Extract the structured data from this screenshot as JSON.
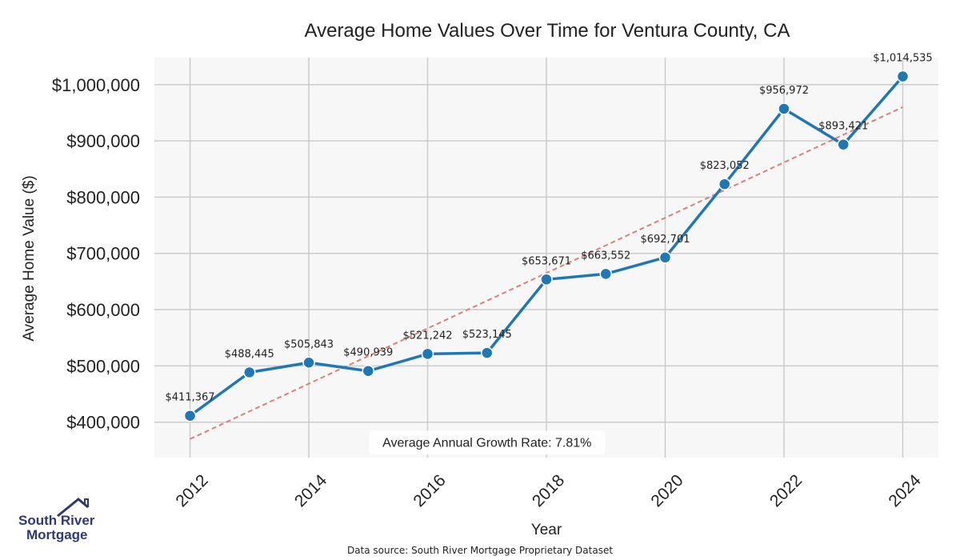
{
  "chart_data": {
    "type": "line",
    "title": "Average Home Values Over Time for Ventura County, CA",
    "xlabel": "Year",
    "ylabel": "Average Home Value ($)",
    "x": [
      2012,
      2013,
      2014,
      2015,
      2016,
      2017,
      2018,
      2019,
      2020,
      2021,
      2022,
      2023,
      2024
    ],
    "values": [
      411367,
      488445,
      505843,
      490939,
      521242,
      523145,
      653671,
      663552,
      692701,
      823052,
      956972,
      893421,
      1014535
    ],
    "data_labels": [
      "$411,367",
      "$488,445",
      "$505,843",
      "$490,939",
      "$521,242",
      "$523,145",
      "$653,671",
      "$663,552",
      "$692,701",
      "$823,052",
      "$956,972",
      "$893,421",
      "$1,014,535"
    ],
    "xticks": [
      "2012",
      "2014",
      "2016",
      "2018",
      "2020",
      "2022",
      "2024"
    ],
    "xtick_values": [
      2012,
      2014,
      2016,
      2018,
      2020,
      2022,
      2024
    ],
    "yticks": [
      "$400,000",
      "$500,000",
      "$600,000",
      "$700,000",
      "$800,000",
      "$900,000",
      "$1,000,000"
    ],
    "ytick_values": [
      400000,
      500000,
      600000,
      700000,
      800000,
      900000,
      1000000
    ],
    "xlim": [
      2011.4,
      2024.6
    ],
    "ylim": [
      337000,
      1048000
    ],
    "trendline": {
      "x": [
        2012,
        2024
      ],
      "y": [
        370000,
        960000
      ]
    },
    "annotation": "Average Annual Growth Rate: 7.81%",
    "annotation_x": 2017,
    "annotation_y": 365000,
    "grid": true,
    "colors": {
      "line": "#1f77b4",
      "trend": "#d98080",
      "grid": "#cccccc",
      "plot_bg": "#f7f7f7",
      "text": "#222222"
    }
  },
  "logo": {
    "line1": "South River",
    "line2": "Mortgage",
    "color": "#2e3a78"
  },
  "footer": {
    "source": "Data source: South River Mortgage Proprietary Dataset"
  }
}
